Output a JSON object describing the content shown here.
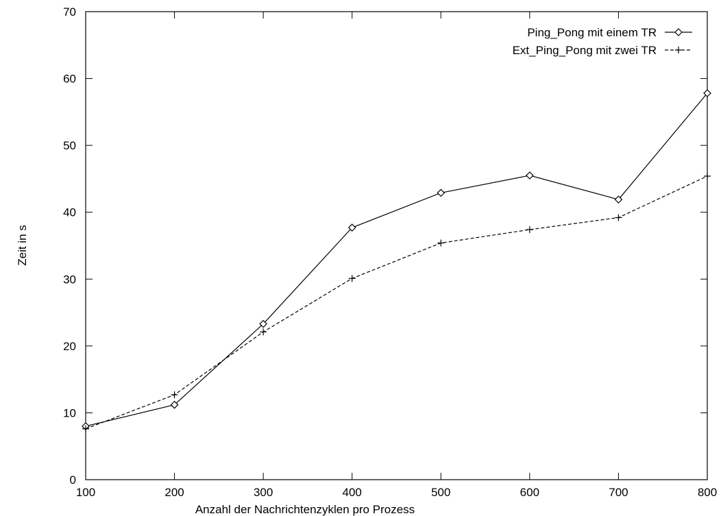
{
  "chart_data": {
    "type": "line",
    "title": "",
    "xlabel": "Anzahl der Nachrichtenzyklen pro Prozess",
    "ylabel": "Zeit in s",
    "x": [
      100,
      200,
      300,
      400,
      500,
      600,
      700,
      800
    ],
    "xlim": [
      100,
      800
    ],
    "ylim": [
      0,
      70
    ],
    "xticks": [
      "100",
      "200",
      "300",
      "400",
      "500",
      "600",
      "700",
      "800"
    ],
    "yticks": [
      "0",
      "10",
      "20",
      "30",
      "40",
      "50",
      "60",
      "70"
    ],
    "grid": false,
    "legend_position": "top-right",
    "series": [
      {
        "name": "Ping_Pong mit einem TR",
        "values": [
          8.0,
          11.2,
          23.3,
          37.7,
          42.9,
          45.5,
          41.9,
          57.8
        ],
        "marker": "diamond",
        "line": "solid"
      },
      {
        "name": "Ext_Ping_Pong mit zwei TR",
        "values": [
          7.6,
          12.7,
          22.1,
          30.1,
          35.4,
          37.4,
          39.2,
          45.4
        ],
        "marker": "plus",
        "line": "dashed"
      }
    ]
  }
}
